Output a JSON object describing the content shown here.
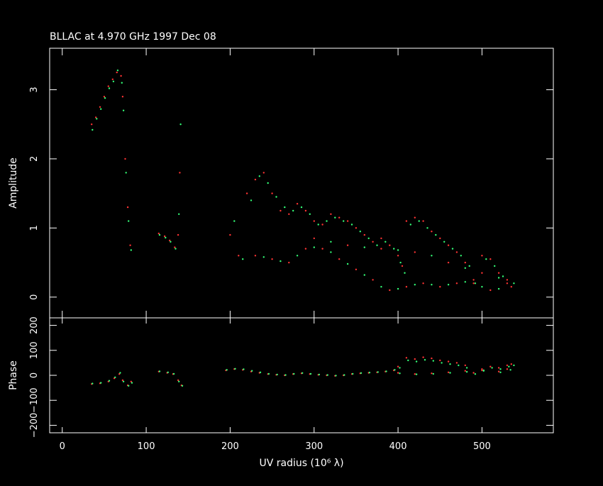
{
  "chart_data": [
    {
      "type": "scatter",
      "title": "BLLAC at 4.970 GHz 1997 Dec 08",
      "xlabel": "UV radius  (10⁶ λ)",
      "ylabel": "Amplitude",
      "xlim": [
        -15,
        585
      ],
      "ylim": [
        -0.3,
        3.6
      ],
      "x_ticks": [
        "0",
        "100",
        "200",
        "300",
        "400",
        "500"
      ],
      "y_ticks": [
        "0",
        "1",
        "2",
        "3"
      ],
      "series": [
        {
          "color": "#ff3333",
          "points": [
            [
              35,
              2.5
            ],
            [
              40,
              2.6
            ],
            [
              45,
              2.75
            ],
            [
              50,
              2.9
            ],
            [
              55,
              3.05
            ],
            [
              60,
              3.15
            ],
            [
              65,
              3.25
            ],
            [
              70,
              3.2
            ],
            [
              72,
              2.9
            ],
            [
              75,
              2.0
            ],
            [
              78,
              1.3
            ],
            [
              81,
              0.75
            ],
            [
              115,
              0.92
            ],
            [
              122,
              0.88
            ],
            [
              128,
              0.82
            ],
            [
              134,
              0.72
            ],
            [
              138,
              0.9
            ],
            [
              140,
              1.8
            ],
            [
              200,
              0.9
            ],
            [
              210,
              0.6
            ],
            [
              220,
              1.5
            ],
            [
              230,
              1.7
            ],
            [
              240,
              1.8
            ],
            [
              250,
              1.5
            ],
            [
              260,
              1.25
            ],
            [
              270,
              1.2
            ],
            [
              280,
              1.35
            ],
            [
              290,
              1.25
            ],
            [
              300,
              1.1
            ],
            [
              310,
              1.05
            ],
            [
              320,
              1.2
            ],
            [
              330,
              1.15
            ],
            [
              340,
              1.1
            ],
            [
              350,
              1.0
            ],
            [
              360,
              0.9
            ],
            [
              370,
              0.8
            ],
            [
              380,
              0.85
            ],
            [
              390,
              0.75
            ],
            [
              400,
              0.6
            ],
            [
              405,
              0.45
            ],
            [
              410,
              1.1
            ],
            [
              420,
              1.15
            ],
            [
              430,
              1.1
            ],
            [
              440,
              0.95
            ],
            [
              450,
              0.85
            ],
            [
              460,
              0.75
            ],
            [
              470,
              0.65
            ],
            [
              480,
              0.5
            ],
            [
              490,
              0.25
            ],
            [
              500,
              0.6
            ],
            [
              510,
              0.55
            ],
            [
              520,
              0.35
            ],
            [
              530,
              0.25
            ],
            [
              535,
              0.15
            ],
            [
              230,
              0.6
            ],
            [
              250,
              0.55
            ],
            [
              270,
              0.5
            ],
            [
              290,
              0.7
            ],
            [
              310,
              0.7
            ],
            [
              330,
              0.55
            ],
            [
              350,
              0.4
            ],
            [
              370,
              0.25
            ],
            [
              390,
              0.1
            ],
            [
              410,
              0.15
            ],
            [
              430,
              0.2
            ],
            [
              450,
              0.15
            ],
            [
              470,
              0.2
            ],
            [
              490,
              0.2
            ],
            [
              510,
              0.1
            ],
            [
              300,
              0.85
            ],
            [
              340,
              0.75
            ],
            [
              380,
              0.7
            ],
            [
              420,
              0.65
            ],
            [
              460,
              0.5
            ],
            [
              500,
              0.35
            ],
            [
              530,
              0.2
            ]
          ]
        },
        {
          "color": "#33ff77",
          "points": [
            [
              36,
              2.42
            ],
            [
              41,
              2.58
            ],
            [
              46,
              2.72
            ],
            [
              51,
              2.88
            ],
            [
              56,
              3.02
            ],
            [
              61,
              3.12
            ],
            [
              66,
              3.28
            ],
            [
              71,
              3.1
            ],
            [
              73,
              2.7
            ],
            [
              76,
              1.8
            ],
            [
              79,
              1.1
            ],
            [
              82,
              0.68
            ],
            [
              116,
              0.9
            ],
            [
              123,
              0.86
            ],
            [
              129,
              0.8
            ],
            [
              135,
              0.7
            ],
            [
              139,
              1.2
            ],
            [
              141,
              2.5
            ],
            [
              205,
              1.1
            ],
            [
              215,
              0.55
            ],
            [
              225,
              1.4
            ],
            [
              235,
              1.75
            ],
            [
              245,
              1.65
            ],
            [
              255,
              1.45
            ],
            [
              265,
              1.3
            ],
            [
              275,
              1.25
            ],
            [
              285,
              1.3
            ],
            [
              295,
              1.2
            ],
            [
              305,
              1.05
            ],
            [
              315,
              1.1
            ],
            [
              325,
              1.15
            ],
            [
              335,
              1.1
            ],
            [
              345,
              1.05
            ],
            [
              355,
              0.95
            ],
            [
              365,
              0.85
            ],
            [
              375,
              0.75
            ],
            [
              385,
              0.8
            ],
            [
              395,
              0.7
            ],
            [
              403,
              0.5
            ],
            [
              408,
              0.35
            ],
            [
              415,
              1.05
            ],
            [
              425,
              1.1
            ],
            [
              435,
              1.0
            ],
            [
              445,
              0.9
            ],
            [
              455,
              0.8
            ],
            [
              465,
              0.7
            ],
            [
              475,
              0.6
            ],
            [
              485,
              0.45
            ],
            [
              492,
              0.2
            ],
            [
              505,
              0.55
            ],
            [
              515,
              0.45
            ],
            [
              525,
              0.3
            ],
            [
              538,
              0.2
            ],
            [
              240,
              0.58
            ],
            [
              260,
              0.52
            ],
            [
              280,
              0.6
            ],
            [
              300,
              0.72
            ],
            [
              320,
              0.65
            ],
            [
              340,
              0.48
            ],
            [
              360,
              0.32
            ],
            [
              380,
              0.15
            ],
            [
              400,
              0.12
            ],
            [
              420,
              0.18
            ],
            [
              440,
              0.18
            ],
            [
              460,
              0.18
            ],
            [
              480,
              0.22
            ],
            [
              500,
              0.15
            ],
            [
              520,
              0.12
            ],
            [
              320,
              0.8
            ],
            [
              360,
              0.72
            ],
            [
              400,
              0.68
            ],
            [
              440,
              0.6
            ],
            [
              480,
              0.42
            ],
            [
              520,
              0.28
            ]
          ]
        }
      ]
    },
    {
      "type": "scatter",
      "xlabel": "UV radius  (10⁶ λ)",
      "ylabel": "Phase",
      "xlim": [
        -15,
        585
      ],
      "ylim": [
        -230,
        230
      ],
      "x_ticks": [
        "0",
        "100",
        "200",
        "300",
        "400",
        "500"
      ],
      "y_ticks": [
        "−200",
        "−100",
        "0",
        "100",
        "200"
      ],
      "series": [
        {
          "color": "#ff3333",
          "points": [
            [
              35,
              -35
            ],
            [
              45,
              -32
            ],
            [
              55,
              -25
            ],
            [
              62,
              -12
            ],
            [
              68,
              5
            ],
            [
              72,
              -20
            ],
            [
              78,
              -40
            ],
            [
              82,
              -25
            ],
            [
              115,
              15
            ],
            [
              125,
              10
            ],
            [
              132,
              5
            ],
            [
              138,
              -20
            ],
            [
              142,
              -40
            ],
            [
              195,
              20
            ],
            [
              205,
              25
            ],
            [
              215,
              22
            ],
            [
              225,
              15
            ],
            [
              235,
              10
            ],
            [
              245,
              5
            ],
            [
              255,
              2
            ],
            [
              265,
              0
            ],
            [
              275,
              5
            ],
            [
              285,
              8
            ],
            [
              295,
              5
            ],
            [
              305,
              2
            ],
            [
              315,
              0
            ],
            [
              325,
              -2
            ],
            [
              335,
              0
            ],
            [
              345,
              5
            ],
            [
              355,
              8
            ],
            [
              365,
              10
            ],
            [
              375,
              12
            ],
            [
              385,
              15
            ],
            [
              395,
              20
            ],
            [
              400,
              35
            ],
            [
              410,
              70
            ],
            [
              420,
              65
            ],
            [
              430,
              72
            ],
            [
              440,
              68
            ],
            [
              450,
              60
            ],
            [
              460,
              55
            ],
            [
              470,
              50
            ],
            [
              480,
              40
            ],
            [
              490,
              10
            ],
            [
              500,
              25
            ],
            [
              510,
              35
            ],
            [
              520,
              30
            ],
            [
              530,
              40
            ],
            [
              535,
              45
            ],
            [
              400,
              10
            ],
            [
              420,
              5
            ],
            [
              440,
              8
            ],
            [
              460,
              12
            ],
            [
              480,
              18
            ],
            [
              500,
              20
            ],
            [
              520,
              15
            ],
            [
              530,
              25
            ]
          ]
        },
        {
          "color": "#33ff77",
          "points": [
            [
              36,
              -33
            ],
            [
              46,
              -30
            ],
            [
              56,
              -22
            ],
            [
              63,
              -8
            ],
            [
              69,
              10
            ],
            [
              73,
              -25
            ],
            [
              79,
              -42
            ],
            [
              83,
              -30
            ],
            [
              116,
              16
            ],
            [
              126,
              12
            ],
            [
              133,
              6
            ],
            [
              139,
              -25
            ],
            [
              143,
              -42
            ],
            [
              196,
              22
            ],
            [
              206,
              26
            ],
            [
              216,
              24
            ],
            [
              226,
              18
            ],
            [
              236,
              12
            ],
            [
              246,
              6
            ],
            [
              256,
              3
            ],
            [
              266,
              1
            ],
            [
              276,
              6
            ],
            [
              286,
              9
            ],
            [
              296,
              6
            ],
            [
              306,
              3
            ],
            [
              316,
              1
            ],
            [
              326,
              -1
            ],
            [
              336,
              1
            ],
            [
              346,
              6
            ],
            [
              356,
              9
            ],
            [
              366,
              11
            ],
            [
              376,
              13
            ],
            [
              386,
              16
            ],
            [
              396,
              22
            ],
            [
              402,
              30
            ],
            [
              412,
              60
            ],
            [
              422,
              55
            ],
            [
              432,
              62
            ],
            [
              442,
              58
            ],
            [
              452,
              50
            ],
            [
              462,
              45
            ],
            [
              472,
              40
            ],
            [
              482,
              30
            ],
            [
              492,
              5
            ],
            [
              502,
              20
            ],
            [
              512,
              30
            ],
            [
              522,
              25
            ],
            [
              532,
              35
            ],
            [
              538,
              40
            ],
            [
              402,
              8
            ],
            [
              422,
              4
            ],
            [
              442,
              6
            ],
            [
              462,
              10
            ],
            [
              482,
              14
            ],
            [
              502,
              18
            ],
            [
              522,
              12
            ],
            [
              534,
              22
            ]
          ]
        }
      ]
    }
  ]
}
